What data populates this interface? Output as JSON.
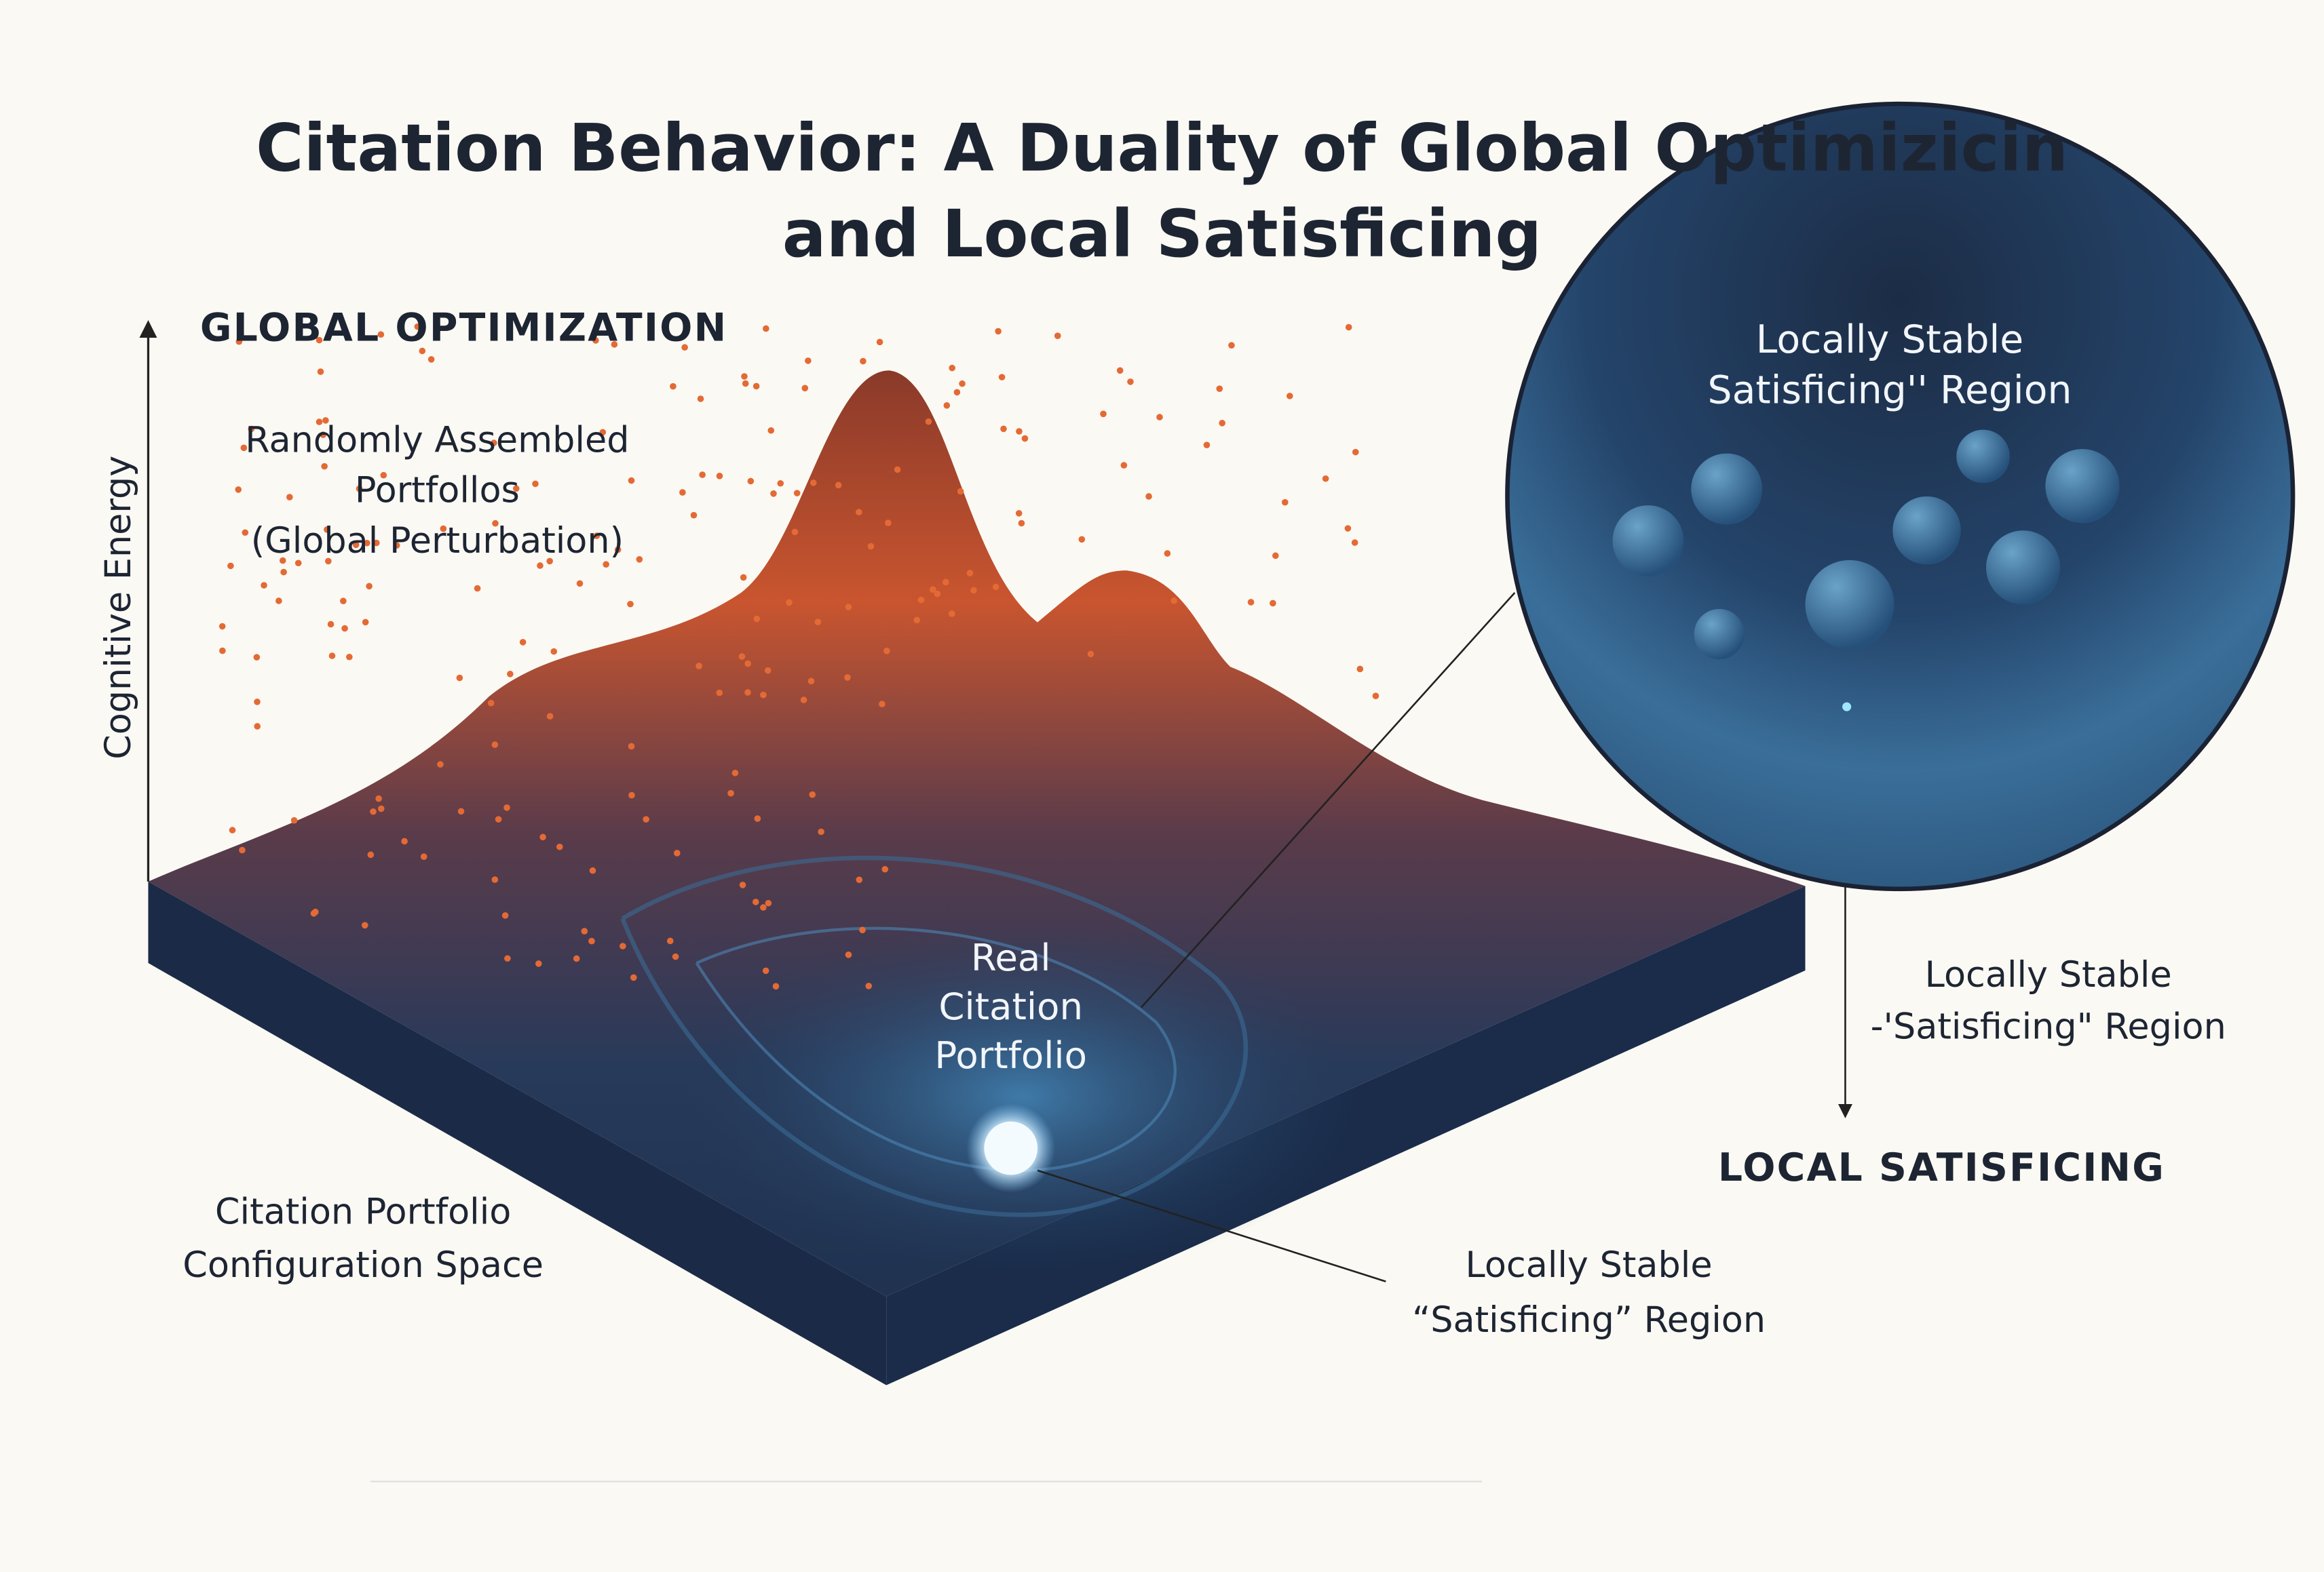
{
  "title": {
    "lines": [
      "Citation Behavior: A Duality of Global Optimizicin",
      "and Local Satisficing"
    ]
  },
  "axis": {
    "label": "Cognitive Energy"
  },
  "global": {
    "heading": "GLOBAL OPTIMIZATION",
    "lines": [
      "Randomly Assembled",
      "Portfollos",
      "(Global Perturbation)"
    ]
  },
  "inset": {
    "lines": [
      "Locally Stable",
      "Satisficing'' Region"
    ]
  },
  "real": {
    "lines": [
      "Real",
      "Citation",
      "Portfolio"
    ]
  },
  "right": {
    "lines": [
      "Locally Stable",
      "-'Satisficing\" Region"
    ],
    "heading": "LOCAL SATISFICING"
  },
  "space": {
    "lines": [
      "Citation Portfolio",
      "Configuration Space"
    ]
  },
  "bottom": {
    "lines": [
      "Locally Stable",
      "“Satisficing” Region"
    ]
  }
}
